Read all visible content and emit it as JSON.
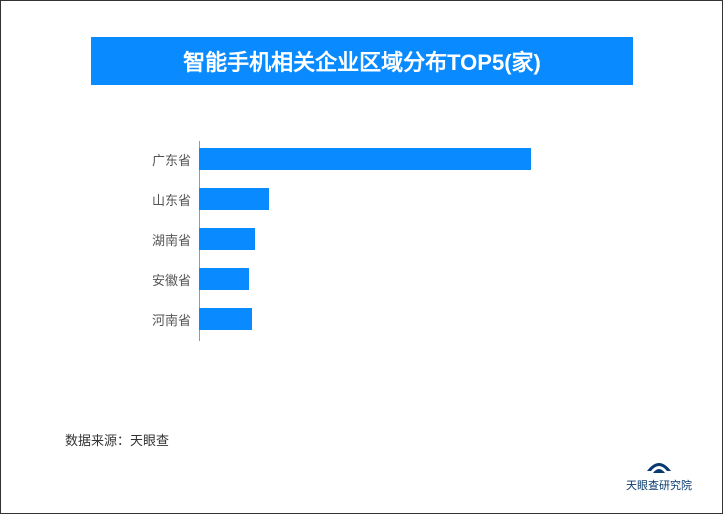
{
  "title": {
    "text": "智能手机相关企业区域分布TOP5(家)",
    "bg_color": "#0a8aff",
    "text_color": "#ffffff",
    "fontsize": 22
  },
  "chart": {
    "type": "bar-horizontal",
    "categories": [
      "广东省",
      "山东省",
      "湖南省",
      "安徽省",
      "河南省"
    ],
    "values": [
      100,
      21,
      17,
      15,
      16
    ],
    "max_value": 130,
    "bar_color": "#0a8aff",
    "label_color": "#555555",
    "label_fontsize": 13,
    "axis_color": "#999999",
    "background_color": "#ffffff"
  },
  "source": {
    "text": "数据来源：天眼查",
    "fontsize": 13,
    "color": "#333333"
  },
  "logo": {
    "text": "天眼查研究院",
    "color": "#0a3a6e",
    "fontsize": 11,
    "icon_color": "#0a3a6e"
  }
}
